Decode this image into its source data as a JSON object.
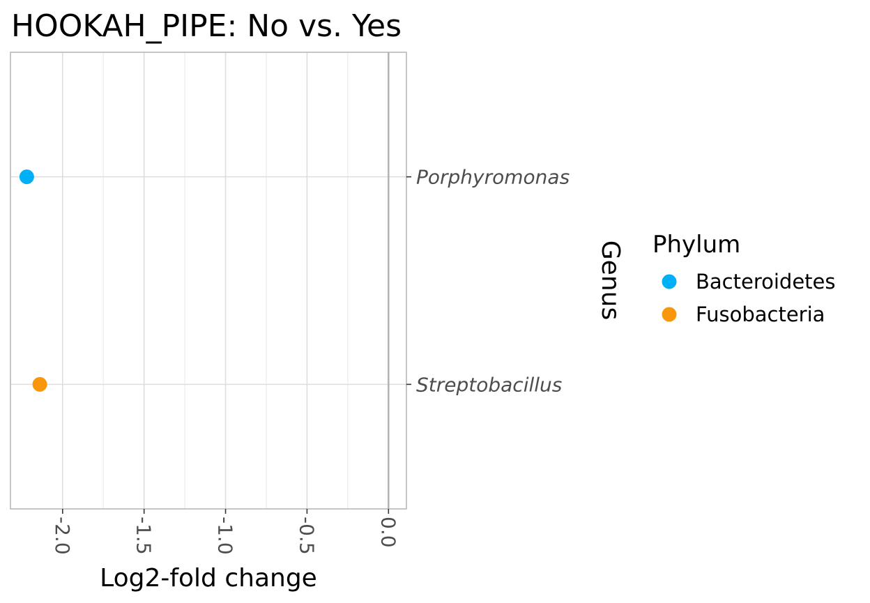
{
  "chart_data": {
    "type": "scatter",
    "title": "HOOKAH_PIPE: No vs. Yes",
    "xlabel": "Log2-fold change",
    "ylabel": "Genus",
    "xlim": [
      -2.32,
      0.11
    ],
    "x_ticks": [
      -2.0,
      -1.5,
      -1.0,
      -0.5,
      0.0
    ],
    "x_tick_labels": [
      "-2.0",
      "-1.5",
      "-1.0",
      "-0.5",
      "0.0"
    ],
    "reference_line_x": 0,
    "grid": true,
    "categories": [
      "Porphyromonas",
      "Streptobacillus"
    ],
    "series": [
      {
        "name": "Bacteroidetes",
        "color": "#00b0f6",
        "points": [
          {
            "genus": "Porphyromonas",
            "x": -2.22
          }
        ]
      },
      {
        "name": "Fusobacteria",
        "color": "#f8970b",
        "points": [
          {
            "genus": "Streptobacillus",
            "x": -2.14
          }
        ]
      }
    ],
    "legend": {
      "title": "Phylum",
      "placement": "right",
      "entries": [
        {
          "label": "Bacteroidetes",
          "color": "#00b0f6"
        },
        {
          "label": "Fusobacteria",
          "color": "#f8970b"
        }
      ]
    }
  }
}
